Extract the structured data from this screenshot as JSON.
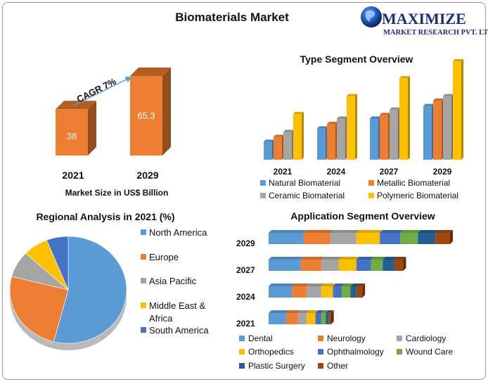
{
  "title": "Biomaterials Market",
  "logo": {
    "name": "MAXIMIZE",
    "sub": "MARKET RESEARCH PVT. LTD."
  },
  "market_size": {
    "xlabel": "Market Size in US$ Billion",
    "cagr": "CAGR 7%",
    "categories": [
      "2021",
      "2029"
    ],
    "values": [
      38,
      65.3
    ],
    "value_labels": [
      "38",
      "65.3"
    ],
    "color": "#ED7D31"
  },
  "colors": {
    "blue": "#5B9BD5",
    "orange": "#ED7D31",
    "gray": "#A5A5A5",
    "yellow": "#FFC000",
    "dkblue": "#4472C4",
    "green": "#70AD47",
    "navy": "#255E91",
    "brown": "#9E480E"
  },
  "chart_data": [
    {
      "type": "bar",
      "title": "Market Size in US$ Billion",
      "categories": [
        "2021",
        "2029"
      ],
      "values": [
        38,
        65.3
      ],
      "annotations": [
        "CAGR 7%"
      ]
    },
    {
      "type": "bar",
      "title": "Type Segment Overview",
      "categories": [
        "2021",
        "2024",
        "2027",
        "2029"
      ],
      "series": [
        {
          "name": "Natural Biomaterial",
          "values": [
            4,
            7,
            9.2,
            12
          ]
        },
        {
          "name": "Metallic Biomaterial",
          "values": [
            5.1,
            8,
            10,
            13.2
          ]
        },
        {
          "name": "Ceramic Biomaterial",
          "values": [
            6.2,
            9.2,
            11.2,
            14.2
          ]
        },
        {
          "name": "Polymeric Biomaterial",
          "values": [
            10.2,
            14.2,
            18.2,
            22
          ]
        }
      ],
      "ylim": [
        0,
        23
      ],
      "legend": "bottom"
    },
    {
      "type": "pie",
      "title": "Regional Analysis in 2021 (%)",
      "labels": [
        "North America",
        "Europe",
        "Asia Pacific",
        "Middle East & Africa",
        "South America"
      ],
      "values": [
        54,
        25,
        8,
        7,
        6
      ],
      "legend": "right"
    },
    {
      "type": "bar",
      "orientation": "horizontal-stacked",
      "title": "Application Segment Overview",
      "categories": [
        "2029",
        "2027",
        "2024",
        "2021"
      ],
      "series": [
        {
          "name": "Dental",
          "values": [
            12,
            11,
            8,
            6
          ]
        },
        {
          "name": "Neurology",
          "values": [
            9,
            7,
            5,
            4
          ]
        },
        {
          "name": "Cardiology",
          "values": [
            9,
            6,
            5,
            3
          ]
        },
        {
          "name": "Orthopedics",
          "values": [
            8,
            6,
            4,
            3
          ]
        },
        {
          "name": "Ophthalmology",
          "values": [
            7,
            5,
            3,
            2
          ]
        },
        {
          "name": "Wound Care",
          "values": [
            6,
            4,
            3,
            1.5
          ]
        },
        {
          "name": "Plastic Surgery",
          "values": [
            6,
            4,
            2,
            1
          ]
        },
        {
          "name": "Other",
          "values": [
            5,
            3,
            2,
            0.8
          ]
        }
      ],
      "legend": "bottom"
    }
  ]
}
